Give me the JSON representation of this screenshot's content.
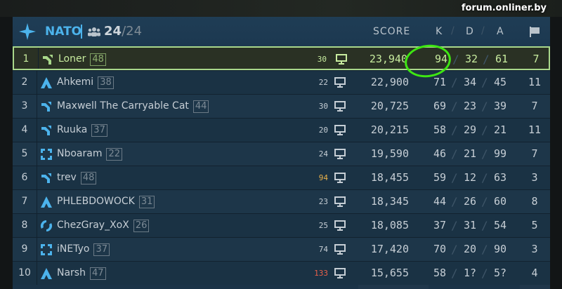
{
  "header": {
    "team": "NATO",
    "players": "24",
    "max_players": "24",
    "slash": "/",
    "cols": {
      "score": "SCORE",
      "k": "K",
      "d": "D",
      "a": "A"
    },
    "flag_icon": "flag-icon"
  },
  "colors": {
    "team": "#4cb3ec",
    "highlight": "#a9d88b",
    "ping_warn": "#e8b04a",
    "ping_bad": "#e8604a",
    "annotation": "#3ee612"
  },
  "rows": [
    {
      "rank": "1",
      "icon": "assault",
      "name": "Loner",
      "level": "48",
      "ping": "30",
      "ping_state": "ok",
      "score": "23,940",
      "k": "94",
      "d": "32",
      "a": "61",
      "f": "7",
      "me": true
    },
    {
      "rank": "2",
      "icon": "engineer",
      "name": "Ahkemi",
      "level": "38",
      "ping": "22",
      "ping_state": "ok",
      "score": "22,900",
      "k": "71",
      "d": "34",
      "a": "45",
      "f": "11"
    },
    {
      "rank": "3",
      "icon": "assault",
      "name": "Maxwell The Carryable Cat",
      "level": "44",
      "ping": "30",
      "ping_state": "ok",
      "score": "20,725",
      "k": "69",
      "d": "23",
      "a": "39",
      "f": "7"
    },
    {
      "rank": "4",
      "icon": "assault",
      "name": "Ruuka",
      "level": "37",
      "ping": "20",
      "ping_state": "ok",
      "score": "20,215",
      "k": "58",
      "d": "29",
      "a": "21",
      "f": "11"
    },
    {
      "rank": "5",
      "icon": "recon",
      "name": "Nboaram",
      "level": "22",
      "ping": "24",
      "ping_state": "ok",
      "score": "19,590",
      "k": "46",
      "d": "21",
      "a": "99",
      "f": "7"
    },
    {
      "rank": "6",
      "icon": "assault",
      "name": "trev",
      "level": "48",
      "ping": "94",
      "ping_state": "warn",
      "score": "18,455",
      "k": "59",
      "d": "12",
      "a": "63",
      "f": "3"
    },
    {
      "rank": "7",
      "icon": "engineer",
      "name": "PHLEBDOWOCK",
      "level": "31",
      "ping": "23",
      "ping_state": "ok",
      "score": "18,345",
      "k": "44",
      "d": "26",
      "a": "60",
      "f": "8"
    },
    {
      "rank": "8",
      "icon": "support",
      "name": "ChezGray_XoX",
      "level": "26",
      "ping": "25",
      "ping_state": "ok",
      "score": "18,085",
      "k": "37",
      "d": "31",
      "a": "54",
      "f": "5"
    },
    {
      "rank": "9",
      "icon": "recon",
      "name": "iNETyo",
      "level": "37",
      "ping": "74",
      "ping_state": "ok",
      "score": "17,420",
      "k": "70",
      "d": "20",
      "a": "90",
      "f": "3"
    },
    {
      "rank": "10",
      "icon": "engineer",
      "name": "Narsh",
      "level": "47",
      "ping": "133",
      "ping_state": "bad",
      "score": "15,655",
      "k": "58",
      "d": "1?",
      "a": "5?",
      "f": "4"
    }
  ],
  "watermark": "forum.onliner.by"
}
